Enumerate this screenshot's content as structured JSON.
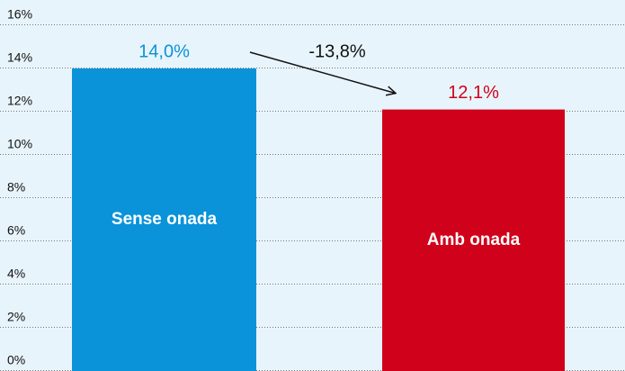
{
  "chart_data": {
    "type": "bar",
    "categories": [
      "Sense onada",
      "Amb onada"
    ],
    "values": [
      14.0,
      12.1
    ],
    "value_labels": [
      "14,0%",
      "12,1%"
    ],
    "colors": [
      "#0a93d9",
      "#d0021b"
    ],
    "annotation": "-13,8%",
    "ylim": [
      0,
      16
    ],
    "yticks": [
      {
        "value": 0,
        "label": "0%"
      },
      {
        "value": 2,
        "label": "2%"
      },
      {
        "value": 4,
        "label": "4%"
      },
      {
        "value": 6,
        "label": "6%"
      },
      {
        "value": 8,
        "label": "8%"
      },
      {
        "value": 10,
        "label": "10%"
      },
      {
        "value": 12,
        "label": "12%"
      },
      {
        "value": 14,
        "label": "14%"
      },
      {
        "value": 16,
        "label": "16%"
      }
    ],
    "grid": true
  }
}
